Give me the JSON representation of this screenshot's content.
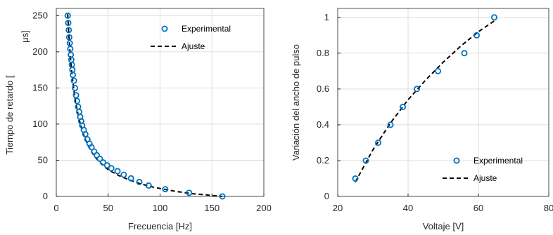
{
  "colors": {
    "marker": "#0072BD",
    "fit": "#000000",
    "grid": "#dedede",
    "axis": "#262626"
  },
  "chart_data": [
    {
      "type": "scatter",
      "title": "",
      "xlabel": "Frecuencia [Hz]",
      "ylabel": "Tiempo de retardo [",
      "ylabel_unit": "μs]",
      "xlim": [
        0,
        200
      ],
      "ylim": [
        0,
        260
      ],
      "xticks": [
        "0",
        "50",
        "100",
        "150",
        "200"
      ],
      "yticks": [
        "0",
        "50",
        "100",
        "150",
        "200",
        "250"
      ],
      "grid": true,
      "legend_position": "top-right",
      "legend": [
        "Experimental",
        "Ajuste"
      ],
      "series": [
        {
          "name": "Experimental",
          "x": [
            11,
            11.5,
            12,
            12.5,
            13,
            13.5,
            14,
            14.5,
            15,
            15.5,
            16,
            17,
            18,
            19,
            20,
            21,
            22,
            23,
            24,
            25,
            26.5,
            28,
            30,
            32,
            34,
            36.5,
            39,
            42,
            45,
            49,
            53,
            59,
            65,
            72,
            80,
            89,
            105,
            128,
            160
          ],
          "y": [
            250,
            240,
            230,
            220,
            212,
            204,
            196,
            189,
            182,
            175,
            168,
            160,
            150,
            140,
            132,
            124,
            117,
            110,
            104,
            98,
            92,
            86,
            79,
            73,
            68,
            62,
            57,
            52,
            47,
            43,
            39,
            35,
            30,
            25,
            20,
            15,
            10,
            5,
            0
          ]
        },
        {
          "name": "Ajuste",
          "x": [
            11,
            12,
            13,
            14,
            15,
            16,
            18,
            20,
            22,
            24,
            26,
            28,
            30,
            33,
            36,
            40,
            45,
            50,
            55,
            60,
            70,
            80,
            90,
            100,
            115,
            130,
            145,
            160
          ],
          "y": [
            252,
            226,
            204,
            186,
            171,
            158,
            136,
            120,
            107,
            96,
            87,
            79,
            72,
            64,
            57,
            50,
            43,
            37,
            33,
            29,
            23,
            18,
            14,
            11,
            7,
            4,
            2,
            0
          ]
        }
      ]
    },
    {
      "type": "scatter",
      "title": "",
      "xlabel": "Voltaje [V]",
      "ylabel": "Variación del ancho de pulso",
      "xlim": [
        20,
        80
      ],
      "ylim": [
        0,
        1.05
      ],
      "xticks": [
        "20",
        "40",
        "60",
        "80"
      ],
      "yticks": [
        "0",
        "0.2",
        "0.4",
        "0.6",
        "0.8",
        "1"
      ],
      "grid": true,
      "legend_position": "bottom-right",
      "legend": [
        "Experimental",
        "Ajuste"
      ],
      "series": [
        {
          "name": "Experimental",
          "x": [
            25,
            28,
            31.5,
            35,
            38.5,
            42.5,
            48.5,
            56,
            59.5,
            64.5
          ],
          "y": [
            0.1,
            0.2,
            0.3,
            0.4,
            0.5,
            0.6,
            0.7,
            0.8,
            0.9,
            1.0
          ]
        },
        {
          "name": "Ajuste",
          "x": [
            25,
            30,
            35,
            40,
            45,
            50,
            55,
            60,
            64.5
          ],
          "y": [
            0.08,
            0.26,
            0.41,
            0.54,
            0.65,
            0.75,
            0.84,
            0.92,
            0.98
          ]
        }
      ]
    }
  ]
}
